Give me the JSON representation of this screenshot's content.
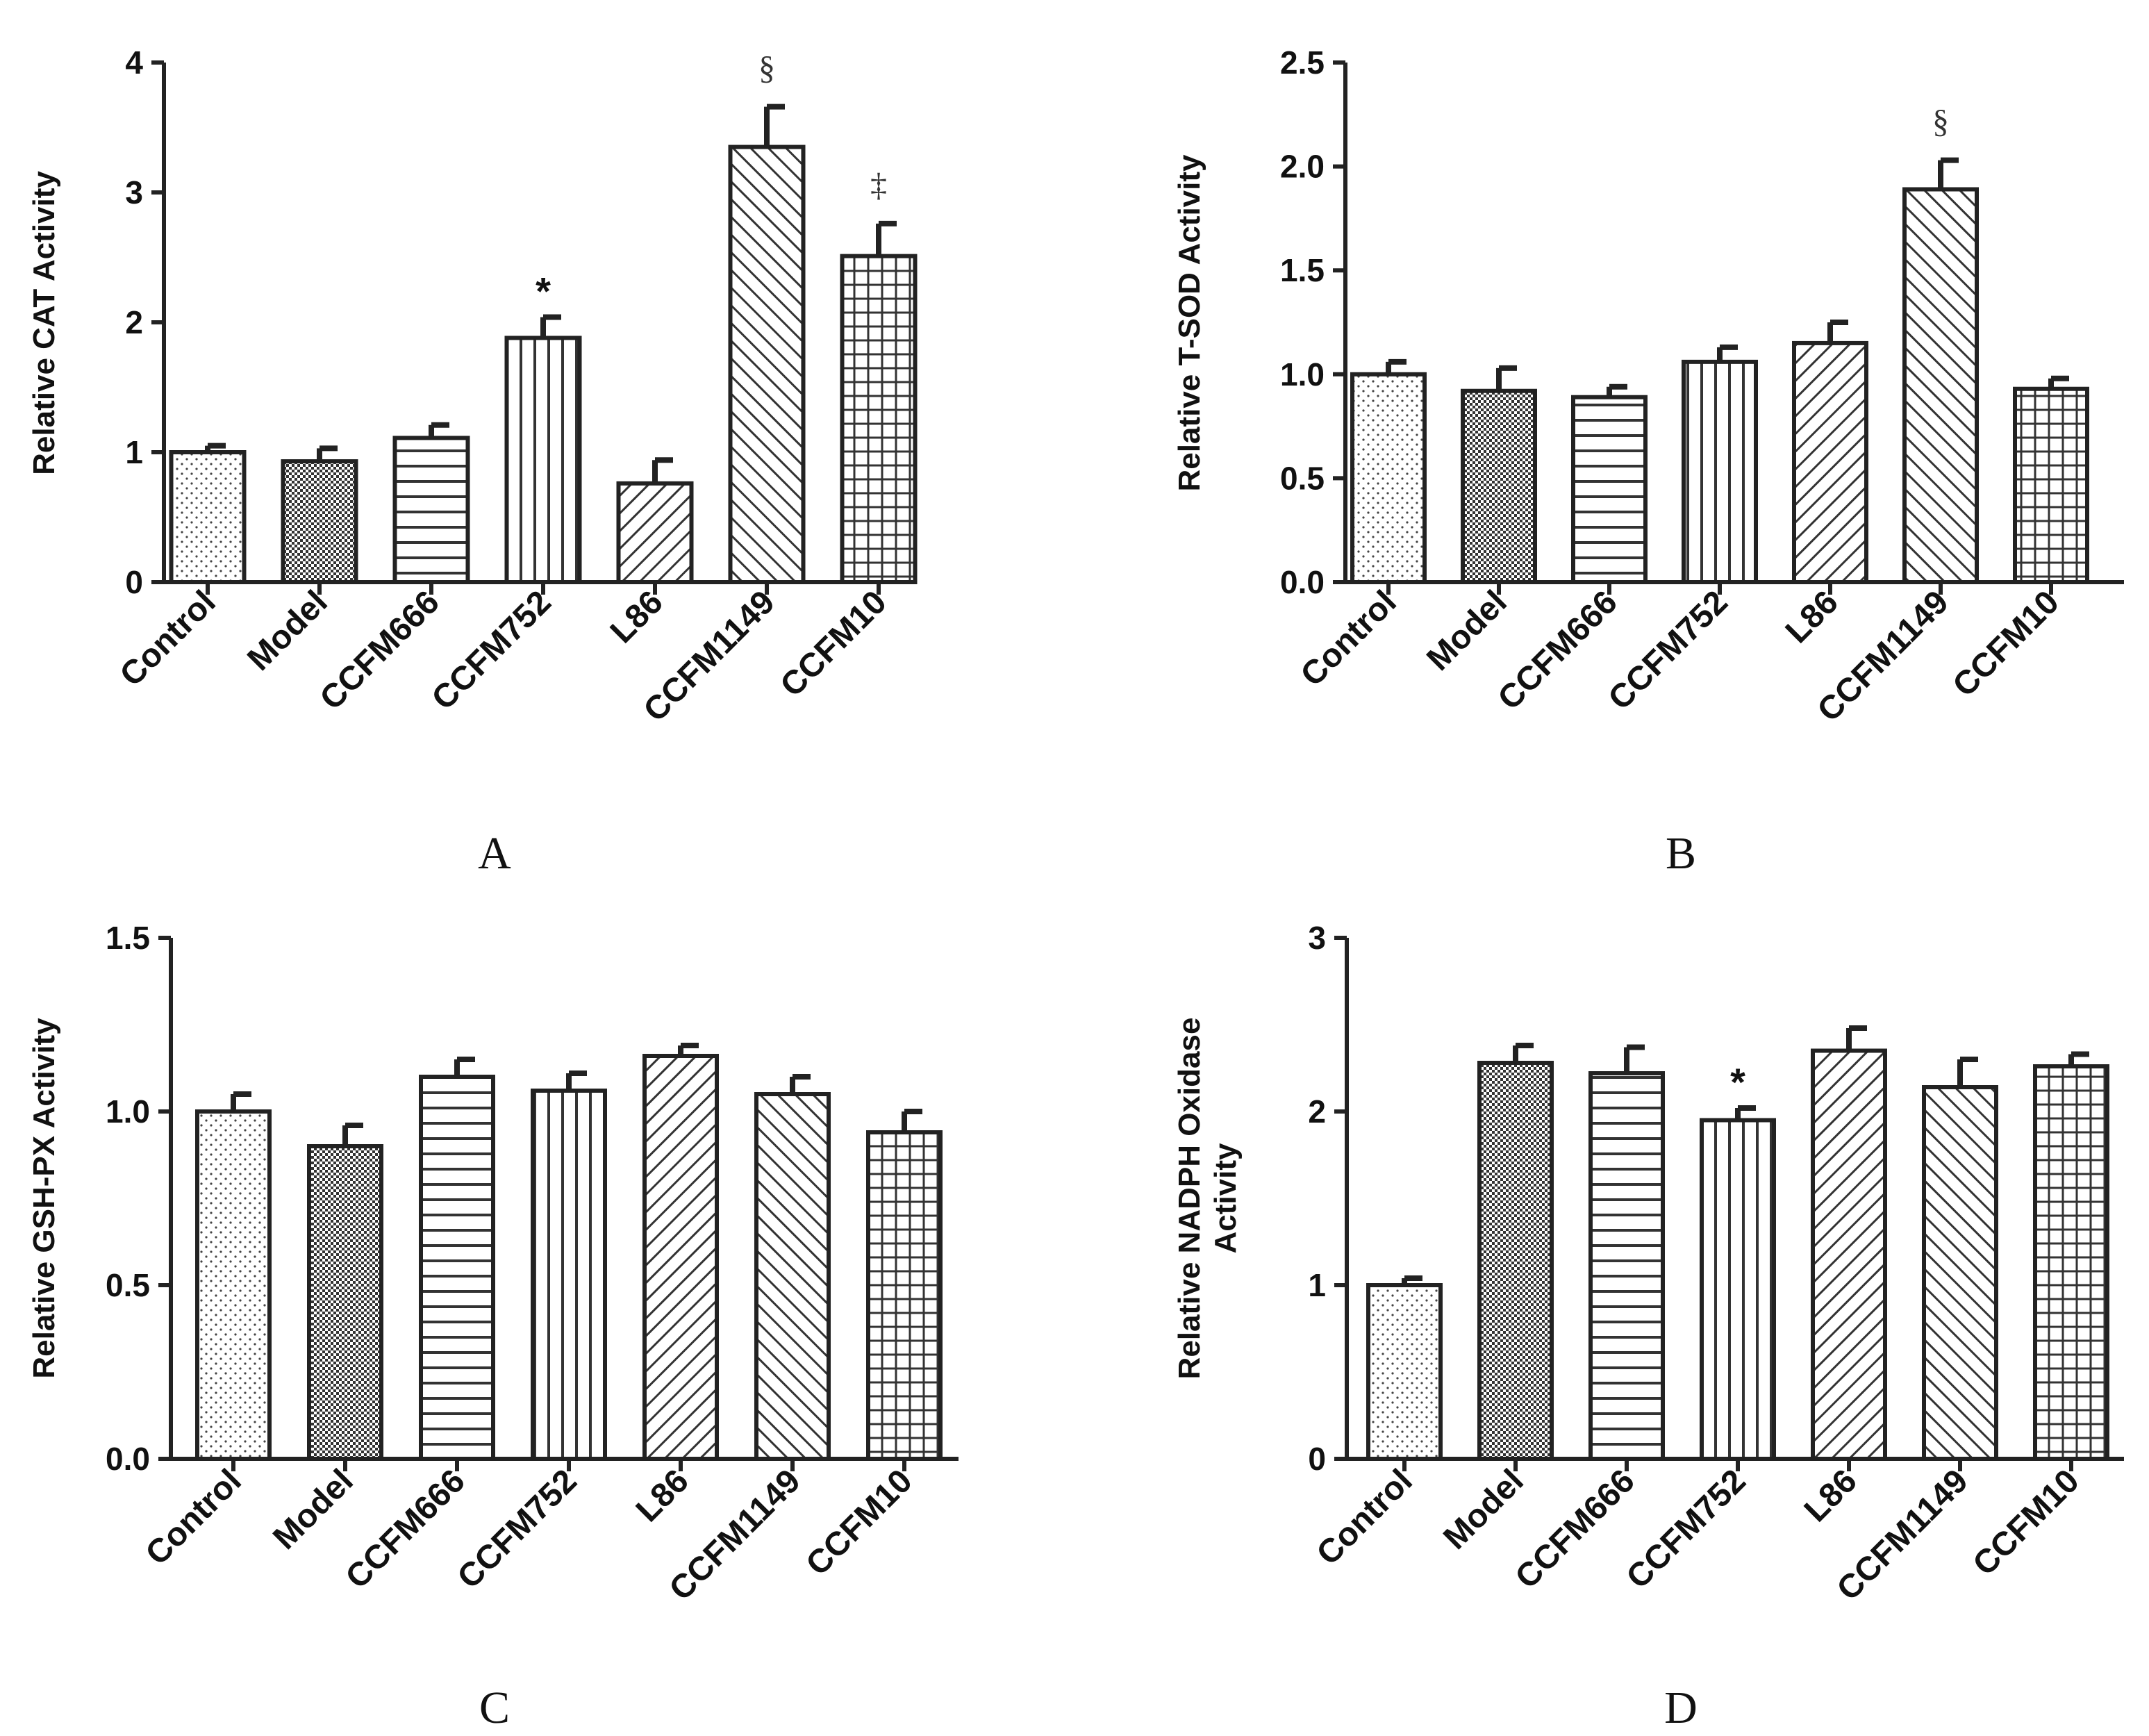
{
  "chart_data": [
    {
      "type": "bar",
      "panel": "A",
      "ylabel": "Relative CAT Activity",
      "ylim": [
        0,
        4
      ],
      "yticks": [
        "0",
        "1",
        "2",
        "3",
        "4"
      ],
      "categories": [
        "Control",
        "Model",
        "CCFM666",
        "CCFM752",
        "L86",
        "CCFM1149",
        "CCFM10"
      ],
      "values": [
        1.0,
        0.93,
        1.11,
        1.88,
        0.76,
        3.35,
        2.51
      ],
      "errors": [
        0.05,
        0.1,
        0.1,
        0.16,
        0.18,
        0.31,
        0.25
      ],
      "significance": [
        "",
        "",
        "",
        "*",
        "",
        "§",
        "‡"
      ]
    },
    {
      "type": "bar",
      "panel": "B",
      "ylabel": "Relative T-SOD Activity",
      "ylim": [
        0,
        2.5
      ],
      "yticks": [
        "0.0",
        "0.5",
        "1.0",
        "1.5",
        "2.0",
        "2.5"
      ],
      "categories": [
        "Control",
        "Model",
        "CCFM666",
        "CCFM752",
        "L86",
        "CCFM1149",
        "CCFM10"
      ],
      "values": [
        1.0,
        0.92,
        0.89,
        1.06,
        1.15,
        1.89,
        0.93
      ],
      "errors": [
        0.06,
        0.11,
        0.05,
        0.07,
        0.1,
        0.14,
        0.05
      ],
      "significance": [
        "",
        "",
        "",
        "",
        "",
        "§",
        ""
      ]
    },
    {
      "type": "bar",
      "panel": "C",
      "ylabel": "Relative  GSH-PX  Activity",
      "ylim": [
        0,
        1.5
      ],
      "yticks": [
        "0.0",
        "0.5",
        "1.0",
        "1.5"
      ],
      "categories": [
        "Control",
        "Model",
        "CCFM666",
        "CCFM752",
        "L86",
        "CCFM1149",
        "CCFM10"
      ],
      "values": [
        1.0,
        0.9,
        1.1,
        1.06,
        1.16,
        1.05,
        0.94
      ],
      "errors": [
        0.05,
        0.06,
        0.05,
        0.05,
        0.03,
        0.05,
        0.06
      ],
      "significance": [
        "",
        "",
        "",
        "",
        "",
        "",
        ""
      ]
    },
    {
      "type": "bar",
      "panel": "D",
      "ylabel": [
        "Relative NADPH Oxidase",
        "Activity"
      ],
      "ylim": [
        0,
        3
      ],
      "yticks": [
        "0",
        "1",
        "2",
        "3"
      ],
      "categories": [
        "Control",
        "Model",
        "CCFM666",
        "CCFM752",
        "L86",
        "CCFM1149",
        "CCFM10"
      ],
      "values": [
        1.0,
        2.28,
        2.22,
        1.95,
        2.35,
        2.14,
        2.26
      ],
      "errors": [
        0.04,
        0.1,
        0.15,
        0.07,
        0.13,
        0.16,
        0.07
      ],
      "significance": [
        "",
        "",
        "",
        "*",
        "",
        "",
        ""
      ]
    }
  ],
  "panel_labels": [
    "A",
    "B",
    "C",
    "D"
  ]
}
